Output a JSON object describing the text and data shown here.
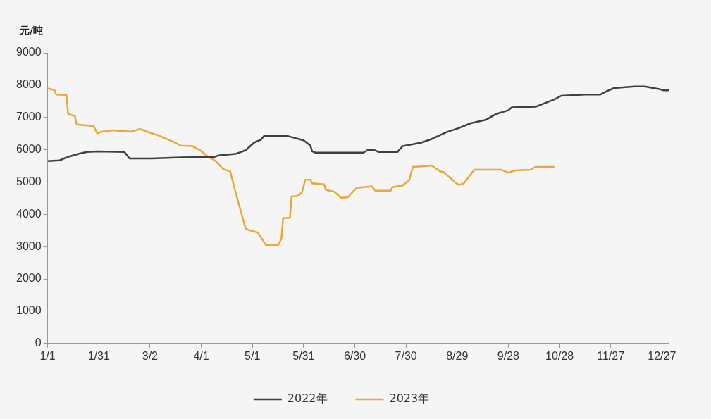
{
  "chart_data": {
    "type": "line",
    "ylabel": "元/吨",
    "xlim": [
      "--01-01",
      "--12-31"
    ],
    "xticks": [
      {
        "value": "--01-01",
        "label": "1/1"
      },
      {
        "value": "--01-31",
        "label": "1/31"
      },
      {
        "value": "--03-02",
        "label": "3/2"
      },
      {
        "value": "--04-01",
        "label": "4/1"
      },
      {
        "value": "--05-01",
        "label": "5/1"
      },
      {
        "value": "--05-31",
        "label": "5/31"
      },
      {
        "value": "--06-30",
        "label": "6/30"
      },
      {
        "value": "--07-30",
        "label": "7/30"
      },
      {
        "value": "--08-29",
        "label": "8/29"
      },
      {
        "value": "--09-28",
        "label": "9/28"
      },
      {
        "value": "--10-28",
        "label": "10/28"
      },
      {
        "value": "--11-27",
        "label": "11/27"
      },
      {
        "value": "--12-27",
        "label": "12/27"
      }
    ],
    "ylim": [
      0,
      9000
    ],
    "yticks": [
      0,
      1000,
      2000,
      3000,
      4000,
      5000,
      6000,
      7000,
      8000,
      9000
    ],
    "grid": false,
    "legend": "bottom",
    "marker": "none",
    "line_style": "solid",
    "series": [
      {
        "name": "2022年",
        "color": "#404040",
        "x": [
          "--01-01",
          "--01-08",
          "--01-13",
          "--01-19",
          "--01-24",
          "--01-30",
          "--02-15",
          "--02-18",
          "--03-03",
          "--03-20",
          "--04-09",
          "--04-11",
          "--04-21",
          "--04-27",
          "--05-02",
          "--05-06",
          "--05-08",
          "--05-22",
          "--05-31",
          "--06-04",
          "--06-05",
          "--06-07",
          "--07-05",
          "--07-08",
          "--07-12",
          "--07-14",
          "--07-25",
          "--07-28",
          "--08-01",
          "--08-08",
          "--08-14",
          "--08-23",
          "--08-30",
          "--09-06",
          "--09-15",
          "--09-21",
          "--09-28",
          "--09-30",
          "--10-14",
          "--10-25",
          "--10-29",
          "--11-12",
          "--11-21",
          "--11-25",
          "--11-29",
          "--12-11",
          "--12-17",
          "--12-22",
          "--12-26",
          "--12-28",
          "--12-31"
        ],
        "values": [
          5650,
          5670,
          5780,
          5870,
          5930,
          5950,
          5930,
          5730,
          5730,
          5760,
          5780,
          5820,
          5870,
          5980,
          6220,
          6310,
          6440,
          6420,
          6290,
          6130,
          5950,
          5910,
          5910,
          6000,
          5980,
          5930,
          5930,
          6110,
          6150,
          6220,
          6330,
          6550,
          6670,
          6820,
          6930,
          7110,
          7220,
          7310,
          7330,
          7560,
          7670,
          7710,
          7710,
          7820,
          7910,
          7960,
          7960,
          7910,
          7870,
          7840,
          7840
        ]
      },
      {
        "name": "2023年",
        "color": "#e8a93a",
        "x": [
          "--01-01",
          "--01-05",
          "--01-06",
          "--01-12",
          "--01-13",
          "--01-17",
          "--01-18",
          "--01-28",
          "--01-30",
          "--02-02",
          "--02-08",
          "--02-19",
          "--02-24",
          "--03-03",
          "--03-07",
          "--03-16",
          "--03-20",
          "--03-27",
          "--04-01",
          "--04-05",
          "--04-09",
          "--04-14",
          "--04-18",
          "--04-21",
          "--04-27",
          "--04-29",
          "--05-04",
          "--05-06",
          "--05-09",
          "--05-16",
          "--05-18",
          "--05-19",
          "--05-23",
          "--05-24",
          "--05-27",
          "--05-30",
          "--06-01",
          "--06-04",
          "--06-05",
          "--06-12",
          "--06-13",
          "--06-18",
          "--06-22",
          "--06-26",
          "--07-01",
          "--07-10",
          "--07-12",
          "--07-21",
          "--07-22",
          "--07-28",
          "--08-01",
          "--08-03",
          "--08-10",
          "--08-14",
          "--08-19",
          "--08-21",
          "--08-28",
          "--08-30",
          "--09-02",
          "--09-06",
          "--09-08",
          "--09-24",
          "--09-28",
          "--10-02",
          "--10-11",
          "--10-14",
          "--10-25"
        ],
        "values": [
          7900,
          7850,
          7710,
          7690,
          7110,
          7040,
          6780,
          6730,
          6510,
          6560,
          6600,
          6560,
          6640,
          6510,
          6440,
          6240,
          6130,
          6110,
          5960,
          5780,
          5670,
          5400,
          5330,
          4710,
          3560,
          3510,
          3440,
          3290,
          3040,
          3040,
          3240,
          3890,
          3890,
          4560,
          4560,
          4670,
          5070,
          5070,
          4960,
          4930,
          4760,
          4700,
          4510,
          4530,
          4820,
          4870,
          4730,
          4730,
          4840,
          4890,
          5070,
          5470,
          5490,
          5510,
          5330,
          5310,
          4980,
          4910,
          4960,
          5240,
          5380,
          5380,
          5290,
          5360,
          5380,
          5470,
          5470
        ]
      }
    ]
  }
}
